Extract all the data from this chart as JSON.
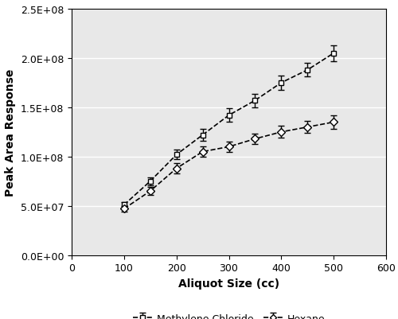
{
  "x": [
    100,
    150,
    200,
    250,
    300,
    350,
    400,
    450,
    500
  ],
  "mc_y": [
    51000000.0,
    75000000.0,
    102000000.0,
    122000000.0,
    142000000.0,
    157000000.0,
    175000000.0,
    188000000.0,
    205000000.0
  ],
  "mc_yerr": [
    3000000.0,
    4000000.0,
    5000000.0,
    6000000.0,
    7000000.0,
    7000000.0,
    7000000.0,
    7000000.0,
    8000000.0
  ],
  "hx_y": [
    47000000.0,
    65000000.0,
    88000000.0,
    105000000.0,
    110000000.0,
    118000000.0,
    125000000.0,
    130000000.0,
    135000000.0
  ],
  "hx_yerr": [
    3000000.0,
    4000000.0,
    5000000.0,
    5000000.0,
    5000000.0,
    5000000.0,
    6000000.0,
    6000000.0,
    7000000.0
  ],
  "xlabel": "Aliquot Size (cc)",
  "ylabel": "Peak Area Response",
  "xlim": [
    0,
    600
  ],
  "ylim": [
    0,
    250000000.0
  ],
  "xticks": [
    0,
    100,
    200,
    300,
    400,
    500,
    600
  ],
  "yticks": [
    0.0,
    50000000.0,
    100000000.0,
    150000000.0,
    200000000.0,
    250000000.0
  ],
  "mc_label": "Methylene Chloride",
  "hx_label": "Hexane",
  "line_color": "#000000",
  "plot_bg_color": "#e8e8e8",
  "fig_bg_color": "#ffffff"
}
